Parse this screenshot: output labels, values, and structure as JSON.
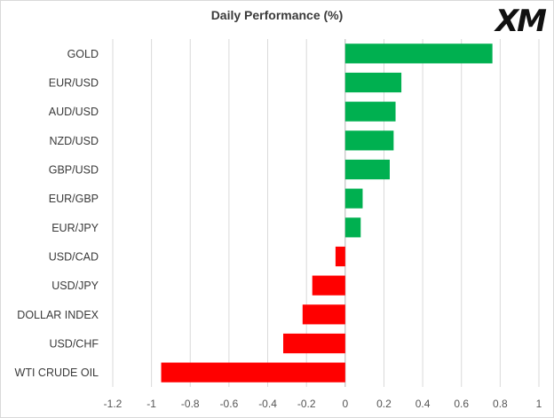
{
  "chart_data": {
    "type": "bar",
    "orientation": "horizontal",
    "title": "Daily Performance (%)",
    "categories": [
      "GOLD",
      "EUR/USD",
      "AUD/USD",
      "NZD/USD",
      "GBP/USD",
      "EUR/GBP",
      "EUR/JPY",
      "USD/CAD",
      "USD/JPY",
      "DOLLAR INDEX",
      "USD/CHF",
      "WTI CRUDE OIL"
    ],
    "values": [
      0.76,
      0.29,
      0.26,
      0.25,
      0.23,
      0.09,
      0.08,
      -0.05,
      -0.17,
      -0.22,
      -0.32,
      -0.95
    ],
    "xlim": [
      -1.2,
      1
    ],
    "xticks": [
      "-1.2",
      "-1",
      "-0.8",
      "-0.6",
      "-0.4",
      "-0.2",
      "0",
      "0.2",
      "0.4",
      "0.6",
      "0.8",
      "1"
    ],
    "grid": true,
    "colors": {
      "positive": "#00b050",
      "negative": "#ff0000",
      "grid": "#d9d9d9"
    }
  },
  "logo": {
    "text": "XM"
  }
}
